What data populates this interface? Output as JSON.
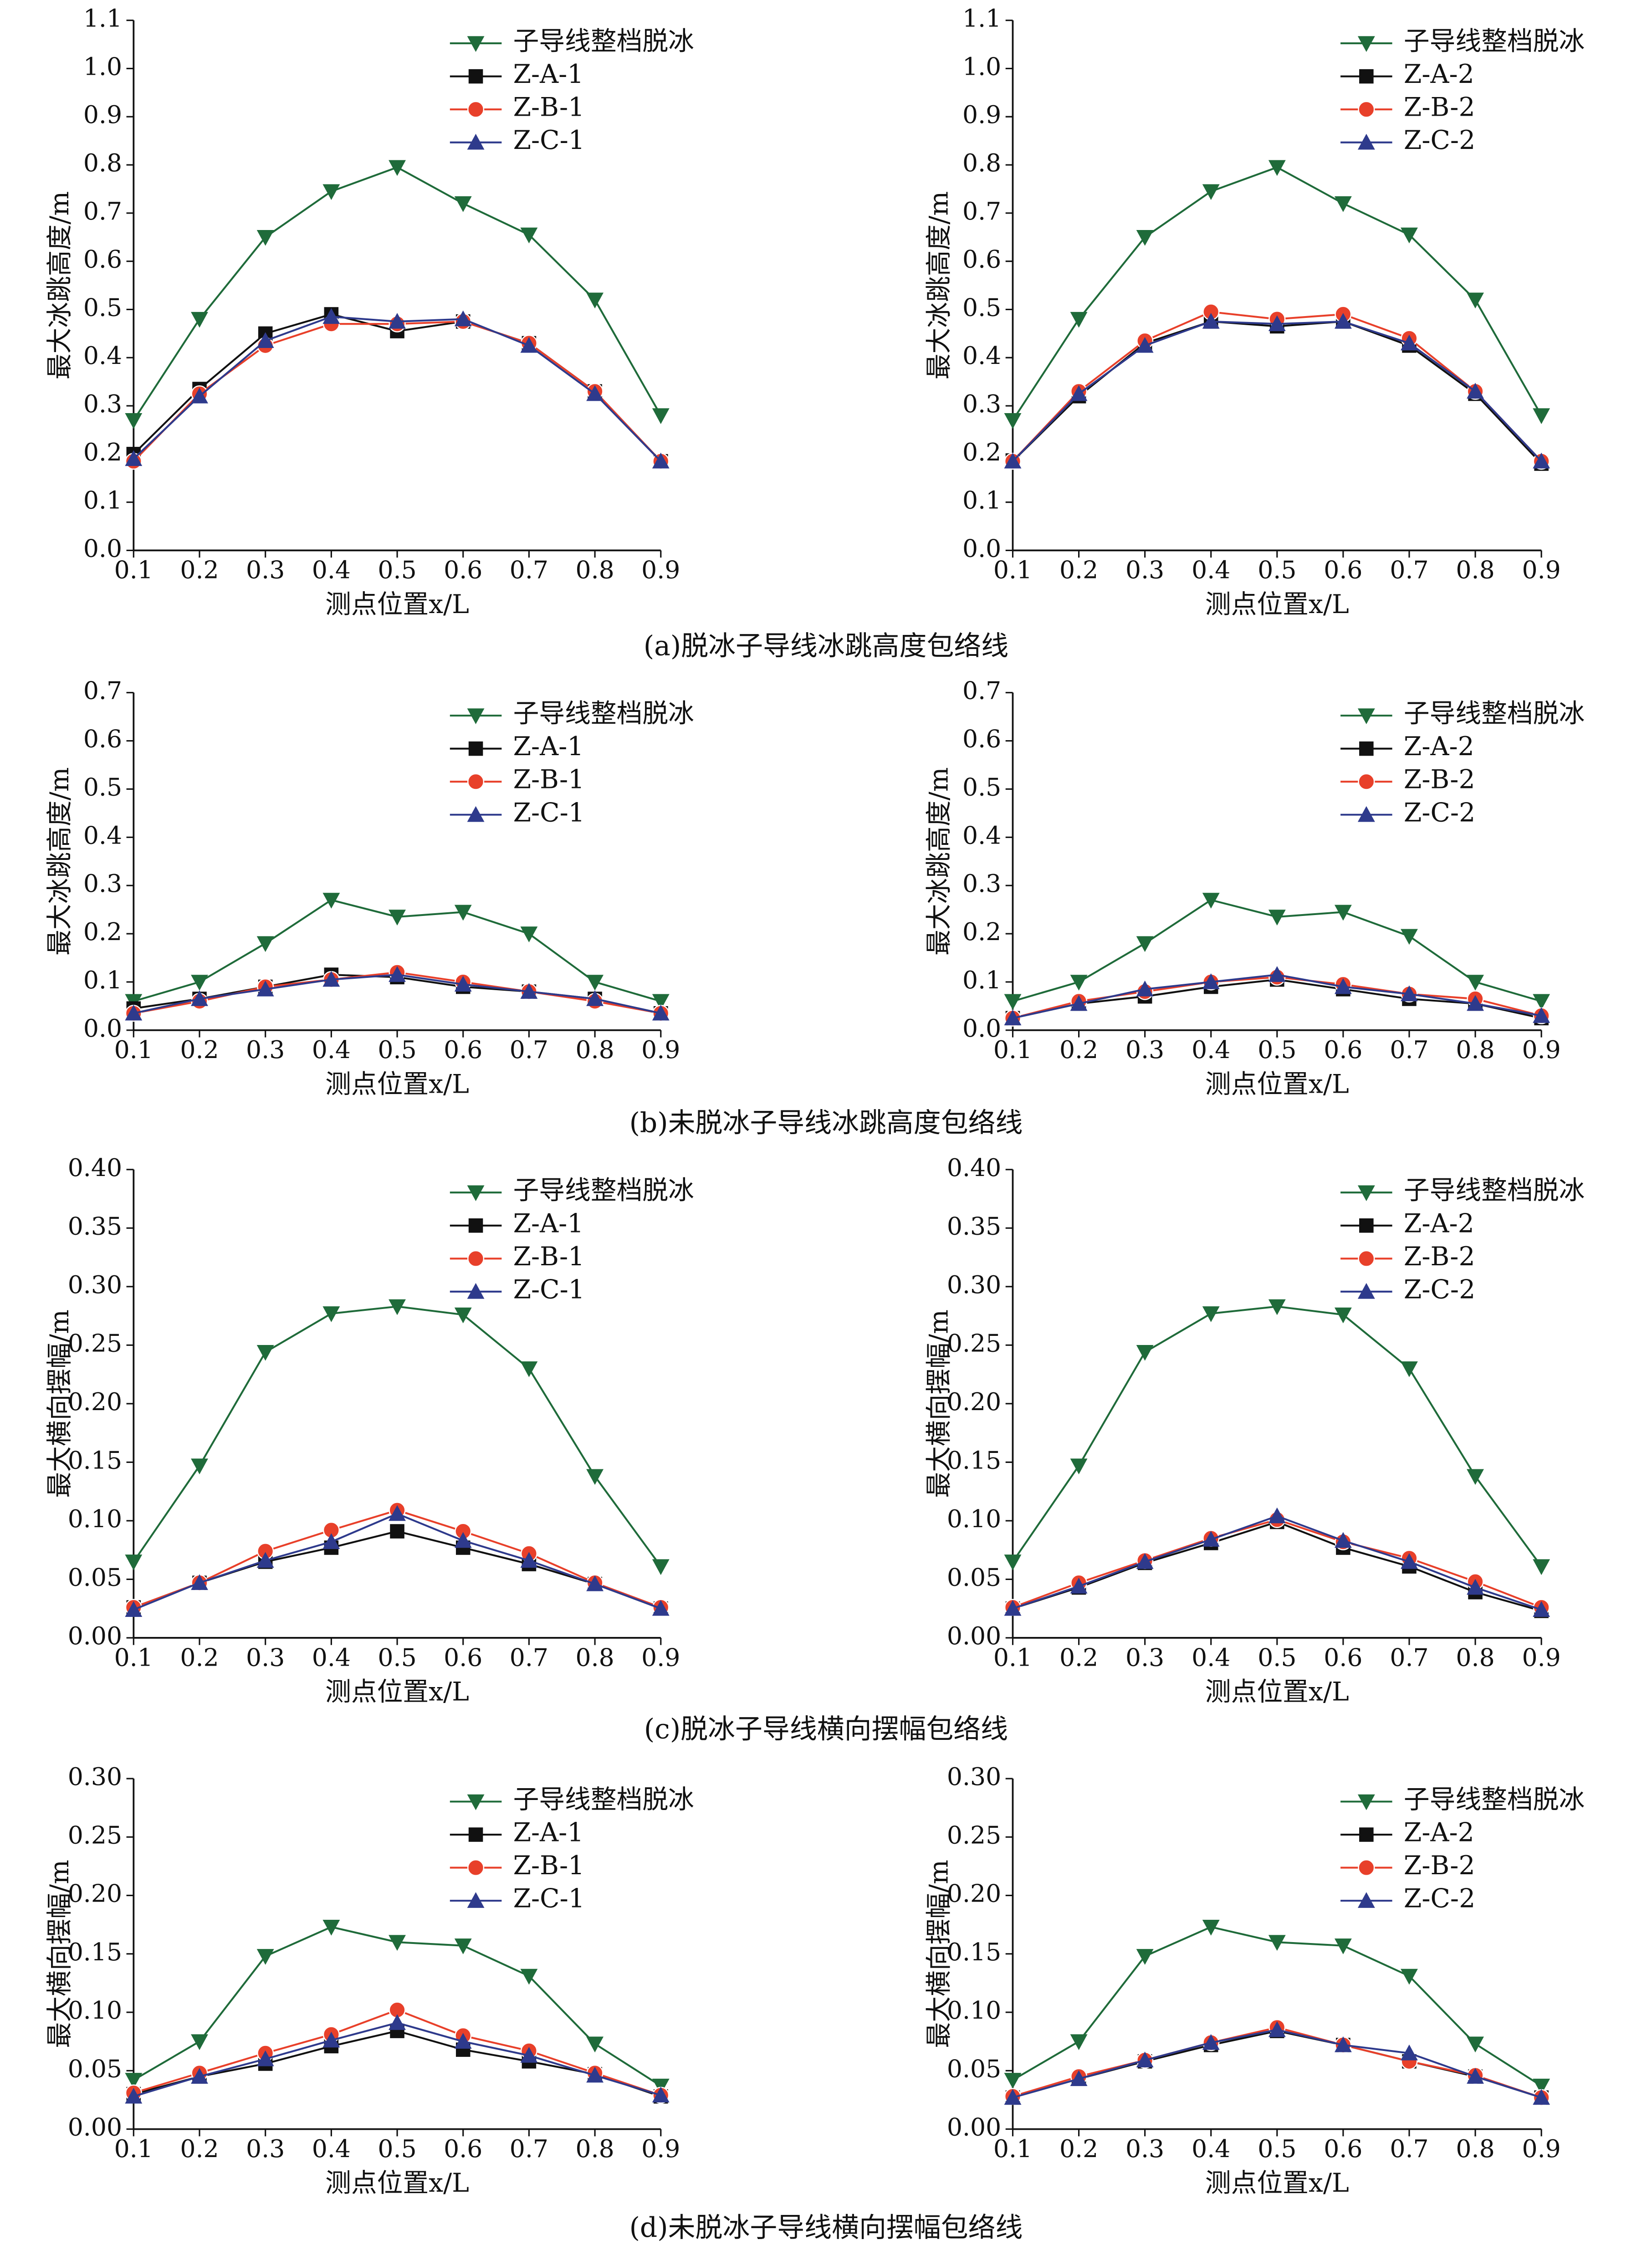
{
  "captions": [
    "(a)脱冰子导线冰跳高度包络线",
    "(b)未脱冰子导线冰跳高度包络线",
    "(c)脱冰子导线横向摆幅包络线",
    "(d)未脱冰子导线横向摆幅包络线"
  ],
  "chart_data": [
    {
      "type": "line",
      "xlabel": "测点位置x/L",
      "ylabel": "最大冰跳高度/m",
      "x": [
        0.1,
        0.2,
        0.3,
        0.4,
        0.5,
        0.6,
        0.7,
        0.8,
        0.9
      ],
      "xlim": [
        0.1,
        0.9
      ],
      "xticks": [
        0.1,
        0.2,
        0.3,
        0.4,
        0.5,
        0.6,
        0.7,
        0.8,
        0.9
      ],
      "ylim": [
        0,
        1.1
      ],
      "yticks": [
        {
          "value": 0,
          "label": "0.0"
        },
        0.1,
        0.2,
        0.3,
        0.4,
        0.5,
        0.6,
        0.7,
        0.8,
        0.9,
        {
          "value": 1,
          "label": "1.0"
        },
        1.1
      ],
      "legend": "upper center",
      "series": [
        {
          "name": "子导线整档脱冰",
          "color": "#1f6b3a",
          "marker": "v",
          "values": [
            0.27,
            0.48,
            0.65,
            0.745,
            0.795,
            0.72,
            0.655,
            0.52,
            0.28
          ]
        },
        {
          "name": "Z-A-1",
          "color": "#111111",
          "marker": "s",
          "values": [
            0.2,
            0.335,
            0.45,
            0.49,
            0.455,
            0.475,
            0.43,
            0.33,
            0.185
          ]
        },
        {
          "name": "Z-B-1",
          "color": "#e8402a",
          "marker": "o",
          "values": [
            0.185,
            0.325,
            0.425,
            0.47,
            0.47,
            0.475,
            0.43,
            0.33,
            0.185
          ]
        },
        {
          "name": "Z-C-1",
          "color": "#2e3a8c",
          "marker": "^",
          "values": [
            0.19,
            0.32,
            0.435,
            0.485,
            0.475,
            0.48,
            0.425,
            0.325,
            0.185
          ]
        }
      ]
    },
    {
      "type": "line",
      "xlabel": "测点位置x/L",
      "ylabel": "最大冰跳高度/m",
      "x": [
        0.1,
        0.2,
        0.3,
        0.4,
        0.5,
        0.6,
        0.7,
        0.8,
        0.9
      ],
      "xlim": [
        0.1,
        0.9
      ],
      "xticks": [
        0.1,
        0.2,
        0.3,
        0.4,
        0.5,
        0.6,
        0.7,
        0.8,
        0.9
      ],
      "ylim": [
        0,
        1.1
      ],
      "yticks": [
        {
          "value": 0,
          "label": "0.0"
        },
        0.1,
        0.2,
        0.3,
        0.4,
        0.5,
        0.6,
        0.7,
        0.8,
        0.9,
        {
          "value": 1,
          "label": "1.0"
        },
        1.1
      ],
      "legend": "upper right",
      "series": [
        {
          "name": "子导线整档脱冰",
          "color": "#1f6b3a",
          "marker": "v",
          "values": [
            0.27,
            0.48,
            0.65,
            0.745,
            0.795,
            0.72,
            0.655,
            0.52,
            0.28
          ]
        },
        {
          "name": "Z-A-2",
          "color": "#111111",
          "marker": "s",
          "values": [
            0.185,
            0.32,
            0.43,
            0.475,
            0.465,
            0.475,
            0.425,
            0.325,
            0.18
          ]
        },
        {
          "name": "Z-B-2",
          "color": "#e8402a",
          "marker": "o",
          "values": [
            0.185,
            0.33,
            0.435,
            0.495,
            0.48,
            0.49,
            0.44,
            0.33,
            0.185
          ]
        },
        {
          "name": "Z-C-2",
          "color": "#2e3a8c",
          "marker": "^",
          "values": [
            0.185,
            0.325,
            0.425,
            0.475,
            0.47,
            0.475,
            0.43,
            0.33,
            0.185
          ]
        }
      ]
    },
    {
      "type": "line",
      "xlabel": "测点位置x/L",
      "ylabel": "最大冰跳高度/m",
      "x": [
        0.1,
        0.2,
        0.3,
        0.4,
        0.5,
        0.6,
        0.7,
        0.8,
        0.9
      ],
      "xlim": [
        0.1,
        0.9
      ],
      "xticks": [
        0.1,
        0.2,
        0.3,
        0.4,
        0.5,
        0.6,
        0.7,
        0.8,
        0.9
      ],
      "ylim": [
        0,
        0.7
      ],
      "yticks": [
        {
          "value": 0,
          "label": "0.0"
        },
        0.1,
        0.2,
        0.3,
        0.4,
        0.5,
        0.6,
        0.7
      ],
      "legend": "upper center",
      "series": [
        {
          "name": "子导线整档脱冰",
          "color": "#1f6b3a",
          "marker": "v",
          "values": [
            0.06,
            0.1,
            0.18,
            0.27,
            0.235,
            0.245,
            0.2,
            0.1,
            0.06
          ]
        },
        {
          "name": "Z-A-1",
          "color": "#111111",
          "marker": "s",
          "values": [
            0.045,
            0.065,
            0.09,
            0.115,
            0.11,
            0.09,
            0.08,
            0.065,
            0.035
          ]
        },
        {
          "name": "Z-B-1",
          "color": "#e8402a",
          "marker": "o",
          "values": [
            0.035,
            0.06,
            0.09,
            0.105,
            0.12,
            0.1,
            0.08,
            0.06,
            0.035
          ]
        },
        {
          "name": "Z-C-1",
          "color": "#2e3a8c",
          "marker": "^",
          "values": [
            0.035,
            0.065,
            0.085,
            0.105,
            0.115,
            0.095,
            0.08,
            0.065,
            0.035
          ]
        }
      ]
    },
    {
      "type": "line",
      "xlabel": "测点位置x/L",
      "ylabel": "最大冰跳高度/m",
      "x": [
        0.1,
        0.2,
        0.3,
        0.4,
        0.5,
        0.6,
        0.7,
        0.8,
        0.9
      ],
      "xlim": [
        0.1,
        0.9
      ],
      "xticks": [
        0.1,
        0.2,
        0.3,
        0.4,
        0.5,
        0.6,
        0.7,
        0.8,
        0.9
      ],
      "ylim": [
        0,
        0.7
      ],
      "yticks": [
        {
          "value": 0,
          "label": "0.0"
        },
        0.1,
        0.2,
        0.3,
        0.4,
        0.5,
        0.6,
        0.7
      ],
      "legend": "upper right",
      "series": [
        {
          "name": "子导线整档脱冰",
          "color": "#1f6b3a",
          "marker": "v",
          "values": [
            0.06,
            0.1,
            0.18,
            0.27,
            0.235,
            0.245,
            0.195,
            0.1,
            0.06
          ]
        },
        {
          "name": "Z-A-2",
          "color": "#111111",
          "marker": "s",
          "values": [
            0.025,
            0.055,
            0.07,
            0.09,
            0.105,
            0.085,
            0.065,
            0.055,
            0.025
          ]
        },
        {
          "name": "Z-B-2",
          "color": "#e8402a",
          "marker": "o",
          "values": [
            0.025,
            0.06,
            0.08,
            0.1,
            0.11,
            0.095,
            0.075,
            0.065,
            0.03
          ]
        },
        {
          "name": "Z-C-2",
          "color": "#2e3a8c",
          "marker": "^",
          "values": [
            0.025,
            0.055,
            0.085,
            0.1,
            0.115,
            0.09,
            0.075,
            0.055,
            0.03
          ]
        }
      ]
    },
    {
      "type": "line",
      "xlabel": "测点位置x/L",
      "ylabel": "最大横向摆幅/m",
      "x": [
        0.1,
        0.2,
        0.3,
        0.4,
        0.5,
        0.6,
        0.7,
        0.8,
        0.9
      ],
      "xlim": [
        0.1,
        0.9
      ],
      "xticks": [
        0.1,
        0.2,
        0.3,
        0.4,
        0.5,
        0.6,
        0.7,
        0.8,
        0.9
      ],
      "ylim": [
        0,
        0.4
      ],
      "yticks": [
        {
          "value": 0,
          "label": "0.00"
        },
        0.05,
        {
          "value": 0.1,
          "label": "0.10"
        },
        0.15,
        {
          "value": 0.2,
          "label": "0.20"
        },
        0.25,
        {
          "value": 0.3,
          "label": "0.30"
        },
        0.35,
        {
          "value": 0.4,
          "label": "0.40"
        }
      ],
      "legend": "upper center",
      "series": [
        {
          "name": "子导线整档脱冰",
          "color": "#1f6b3a",
          "marker": "v",
          "values": [
            0.065,
            0.147,
            0.244,
            0.277,
            0.283,
            0.276,
            0.23,
            0.138,
            0.061
          ]
        },
        {
          "name": "Z-A-1",
          "color": "#111111",
          "marker": "s",
          "values": [
            0.026,
            0.047,
            0.065,
            0.077,
            0.091,
            0.077,
            0.063,
            0.046,
            0.025
          ]
        },
        {
          "name": "Z-B-1",
          "color": "#e8402a",
          "marker": "o",
          "values": [
            0.026,
            0.047,
            0.074,
            0.092,
            0.109,
            0.091,
            0.072,
            0.047,
            0.026
          ]
        },
        {
          "name": "Z-C-1",
          "color": "#2e3a8c",
          "marker": "^",
          "values": [
            0.024,
            0.047,
            0.066,
            0.082,
            0.106,
            0.083,
            0.066,
            0.046,
            0.025
          ]
        }
      ]
    },
    {
      "type": "line",
      "xlabel": "测点位置x/L",
      "ylabel": "最大横向摆幅/m",
      "x": [
        0.1,
        0.2,
        0.3,
        0.4,
        0.5,
        0.6,
        0.7,
        0.8,
        0.9
      ],
      "xlim": [
        0.1,
        0.9
      ],
      "xticks": [
        0.1,
        0.2,
        0.3,
        0.4,
        0.5,
        0.6,
        0.7,
        0.8,
        0.9
      ],
      "ylim": [
        0,
        0.4
      ],
      "yticks": [
        {
          "value": 0,
          "label": "0.00"
        },
        0.05,
        {
          "value": 0.1,
          "label": "0.10"
        },
        0.15,
        {
          "value": 0.2,
          "label": "0.20"
        },
        0.25,
        {
          "value": 0.3,
          "label": "0.30"
        },
        0.35,
        {
          "value": 0.4,
          "label": "0.40"
        }
      ],
      "legend": "upper right",
      "series": [
        {
          "name": "子导线整档脱冰",
          "color": "#1f6b3a",
          "marker": "v",
          "values": [
            0.065,
            0.147,
            0.244,
            0.277,
            0.283,
            0.276,
            0.23,
            0.138,
            0.061
          ]
        },
        {
          "name": "Z-A-2",
          "color": "#111111",
          "marker": "s",
          "values": [
            0.025,
            0.043,
            0.064,
            0.081,
            0.099,
            0.077,
            0.061,
            0.039,
            0.023
          ]
        },
        {
          "name": "Z-B-2",
          "color": "#e8402a",
          "marker": "o",
          "values": [
            0.026,
            0.047,
            0.066,
            0.085,
            0.101,
            0.082,
            0.068,
            0.048,
            0.026
          ]
        },
        {
          "name": "Z-C-2",
          "color": "#2e3a8c",
          "marker": "^",
          "values": [
            0.025,
            0.044,
            0.065,
            0.084,
            0.104,
            0.083,
            0.065,
            0.043,
            0.024
          ]
        }
      ]
    },
    {
      "type": "line",
      "xlabel": "测点位置x/L",
      "ylabel": "最大横向摆幅/m",
      "x": [
        0.1,
        0.2,
        0.3,
        0.4,
        0.5,
        0.6,
        0.7,
        0.8,
        0.9
      ],
      "xlim": [
        0.1,
        0.9
      ],
      "xticks": [
        0.1,
        0.2,
        0.3,
        0.4,
        0.5,
        0.6,
        0.7,
        0.8,
        0.9
      ],
      "ylim": [
        0,
        0.3
      ],
      "yticks": [
        {
          "value": 0,
          "label": "0.00"
        },
        0.05,
        {
          "value": 0.1,
          "label": "0.10"
        },
        0.15,
        {
          "value": 0.2,
          "label": "0.20"
        },
        0.25,
        {
          "value": 0.3,
          "label": "0.30"
        }
      ],
      "legend": "upper center",
      "series": [
        {
          "name": "子导线整档脱冰",
          "color": "#1f6b3a",
          "marker": "v",
          "values": [
            0.042,
            0.075,
            0.148,
            0.173,
            0.16,
            0.157,
            0.131,
            0.073,
            0.037
          ]
        },
        {
          "name": "Z-A-1",
          "color": "#111111",
          "marker": "s",
          "values": [
            0.03,
            0.045,
            0.056,
            0.071,
            0.084,
            0.068,
            0.058,
            0.047,
            0.028
          ]
        },
        {
          "name": "Z-B-1",
          "color": "#e8402a",
          "marker": "o",
          "values": [
            0.031,
            0.048,
            0.065,
            0.081,
            0.102,
            0.08,
            0.067,
            0.048,
            0.029
          ]
        },
        {
          "name": "Z-C-1",
          "color": "#2e3a8c",
          "marker": "^",
          "values": [
            0.028,
            0.045,
            0.06,
            0.076,
            0.091,
            0.075,
            0.063,
            0.046,
            0.029
          ]
        }
      ]
    },
    {
      "type": "line",
      "xlabel": "测点位置x/L",
      "ylabel": "最大横向摆幅/m",
      "x": [
        0.1,
        0.2,
        0.3,
        0.4,
        0.5,
        0.6,
        0.7,
        0.8,
        0.9
      ],
      "xlim": [
        0.1,
        0.9
      ],
      "xticks": [
        0.1,
        0.2,
        0.3,
        0.4,
        0.5,
        0.6,
        0.7,
        0.8,
        0.9
      ],
      "ylim": [
        0,
        0.3
      ],
      "yticks": [
        {
          "value": 0,
          "label": "0.00"
        },
        0.05,
        {
          "value": 0.1,
          "label": "0.10"
        },
        0.15,
        {
          "value": 0.2,
          "label": "0.20"
        },
        0.25,
        {
          "value": 0.3,
          "label": "0.30"
        }
      ],
      "legend": "upper right",
      "series": [
        {
          "name": "子导线整档脱冰",
          "color": "#1f6b3a",
          "marker": "v",
          "values": [
            0.042,
            0.075,
            0.148,
            0.173,
            0.16,
            0.157,
            0.131,
            0.073,
            0.037
          ]
        },
        {
          "name": "Z-A-2",
          "color": "#111111",
          "marker": "s",
          "values": [
            0.027,
            0.043,
            0.058,
            0.072,
            0.084,
            0.072,
            0.058,
            0.045,
            0.027
          ]
        },
        {
          "name": "Z-B-2",
          "color": "#e8402a",
          "marker": "o",
          "values": [
            0.028,
            0.045,
            0.059,
            0.074,
            0.087,
            0.072,
            0.058,
            0.046,
            0.027
          ]
        },
        {
          "name": "Z-C-2",
          "color": "#2e3a8c",
          "marker": "^",
          "values": [
            0.027,
            0.043,
            0.059,
            0.074,
            0.085,
            0.072,
            0.065,
            0.045,
            0.027
          ]
        }
      ]
    }
  ]
}
